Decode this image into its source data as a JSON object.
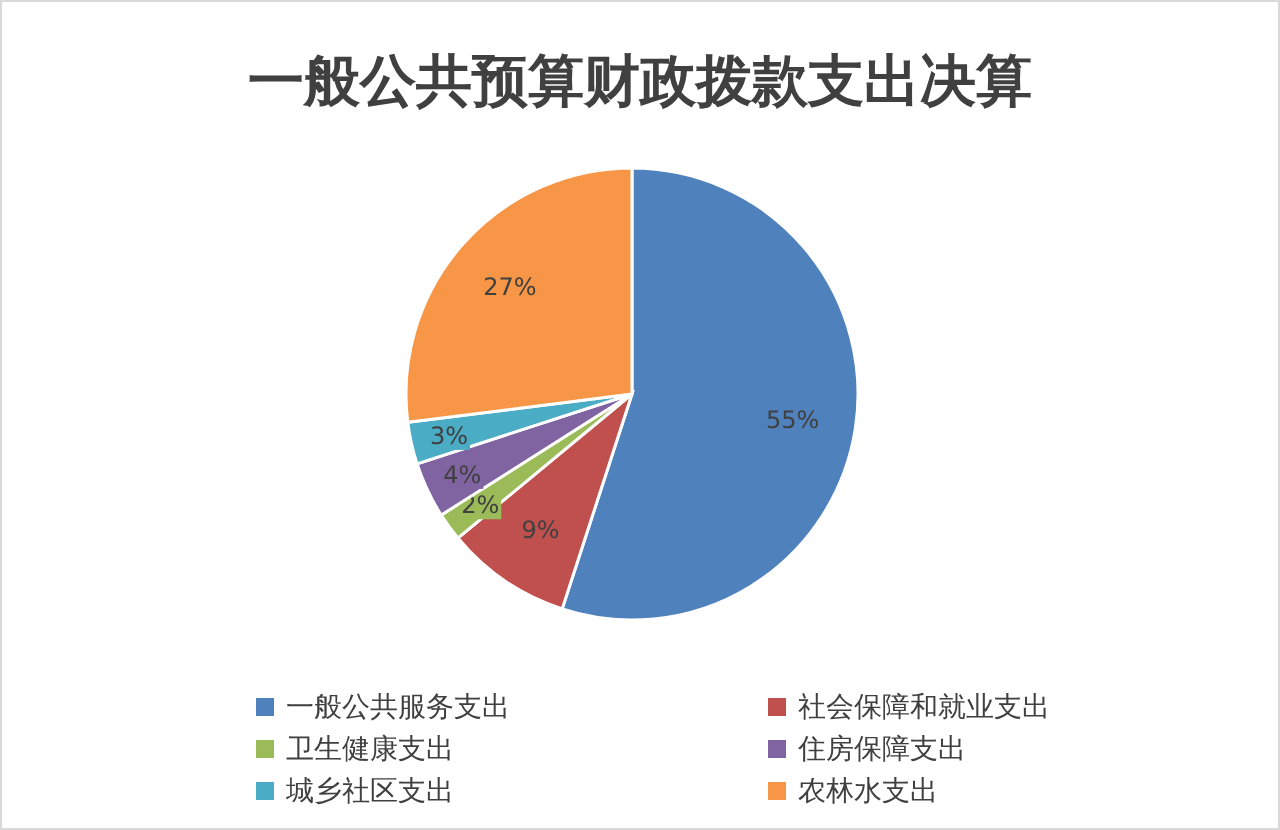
{
  "chart_data": {
    "type": "pie",
    "title": "一般公共预算财政拨款支出决算",
    "categories": [
      "一般公共服务支出",
      "社会保障和就业支出",
      "卫生健康支出",
      "住房保障支出",
      "城乡社区支出",
      "农林水支出"
    ],
    "values": [
      55,
      9,
      2,
      4,
      3,
      27
    ],
    "value_labels": [
      "55%",
      "9%",
      "2%",
      "4%",
      "3%",
      "27%"
    ],
    "colors": [
      "#4f81bd",
      "#c0504d",
      "#9bbb59",
      "#8064a2",
      "#4bacc6",
      "#f79646"
    ],
    "legend": "bottom"
  }
}
